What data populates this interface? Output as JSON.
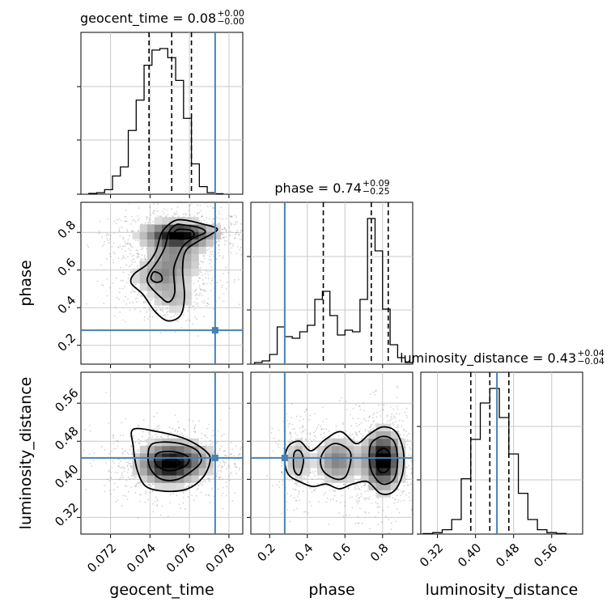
{
  "chart_data": {
    "type": "corner",
    "parameters": [
      "geocent_time",
      "phase",
      "luminosity_distance"
    ],
    "truths": {
      "geocent_time": 0.0773,
      "phase": 0.28,
      "luminosity_distance": 0.445
    },
    "colors": {
      "truth": "#4682b4",
      "contour": "#000000",
      "histogram": "#000000",
      "scatter": "#808080",
      "grid": "#c8c8c8"
    },
    "titles": [
      {
        "param": "geocent_time",
        "text": "geocent_time = 0.08",
        "sup": "+0.00",
        "sub": "−0.00"
      },
      {
        "param": "phase",
        "text": "phase = 0.74",
        "sup": "+0.09",
        "sub": "−0.25"
      },
      {
        "param": "luminosity_distance",
        "text": "luminosity_distance = 0.43",
        "sup": "+0.04",
        "sub": "−0.04"
      }
    ],
    "axis_labels": {
      "x": [
        "geocent_time",
        "phase",
        "luminosity_distance"
      ],
      "y": [
        "phase",
        "luminosity_distance"
      ]
    },
    "ranges": {
      "geocent_time": [
        0.0705,
        0.0787
      ],
      "phase": [
        0.1,
        0.96
      ],
      "luminosity_distance": [
        0.285,
        0.625
      ]
    },
    "ticks": {
      "geocent_time": [
        "0.072",
        "0.074",
        "0.076",
        "0.078"
      ],
      "phase_x": [
        "0.2",
        "0.4",
        "0.6",
        "0.8"
      ],
      "phase_y": [
        "0.2",
        "0.4",
        "0.6",
        "0.8"
      ],
      "luminosity_distance": [
        "0.32",
        "0.40",
        "0.48",
        "0.56"
      ]
    },
    "marginals": {
      "geocent_time": {
        "edges_start": 0.0709,
        "bin_width": 0.0004,
        "counts": [
          0.5,
          1,
          3,
          12,
          18,
          42,
          62,
          85,
          95,
          96,
          90,
          75,
          50,
          20,
          5,
          1,
          0.3
        ],
        "quantiles": [
          0.07395,
          0.0751,
          0.0761
        ]
      },
      "phase": {
        "edges_start": 0.12,
        "bin_width": 0.04,
        "counts": [
          1,
          2,
          6,
          23,
          17,
          16,
          20,
          24,
          40,
          45,
          30,
          18,
          21,
          20,
          40,
          90,
          70,
          34,
          12,
          4,
          1
        ],
        "quantiles": [
          0.485,
          0.74,
          0.83
        ]
      },
      "luminosity_distance": {
        "edges_start": 0.29,
        "bin_width": 0.02,
        "counts": [
          0.3,
          1,
          3,
          10,
          38,
          65,
          90,
          100,
          80,
          55,
          28,
          10,
          3,
          1,
          0.4
        ],
        "quantiles": [
          0.39,
          0.43,
          0.47
        ]
      }
    },
    "contours": {
      "phase_vs_geocent_time": [
        [
          [
            0.0758,
            0.865
          ],
          [
            0.07665,
            0.845
          ],
          [
            0.0774,
            0.82
          ],
          [
            0.0771,
            0.79
          ],
          [
            0.0764,
            0.75
          ],
          [
            0.0758,
            0.7
          ],
          [
            0.07565,
            0.6
          ],
          [
            0.07575,
            0.46
          ],
          [
            0.07555,
            0.36
          ],
          [
            0.0749,
            0.33
          ],
          [
            0.07425,
            0.38
          ],
          [
            0.07365,
            0.47
          ],
          [
            0.07305,
            0.53
          ],
          [
            0.0732,
            0.58
          ],
          [
            0.07385,
            0.63
          ],
          [
            0.0743,
            0.7
          ],
          [
            0.0746,
            0.8
          ],
          [
            0.0752,
            0.86
          ]
        ],
        [
          [
            0.0757,
            0.84
          ],
          [
            0.0765,
            0.825
          ],
          [
            0.0768,
            0.8
          ],
          [
            0.0762,
            0.77
          ],
          [
            0.0757,
            0.73
          ],
          [
            0.0754,
            0.67
          ],
          [
            0.0752,
            0.6
          ],
          [
            0.07525,
            0.48
          ],
          [
            0.07495,
            0.43
          ],
          [
            0.0745,
            0.46
          ],
          [
            0.0739,
            0.53
          ],
          [
            0.07395,
            0.58
          ],
          [
            0.0744,
            0.65
          ],
          [
            0.07475,
            0.72
          ],
          [
            0.07495,
            0.8
          ],
          [
            0.0753,
            0.84
          ]
        ],
        [
          [
            0.0754,
            0.815
          ],
          [
            0.0761,
            0.81
          ],
          [
            0.0762,
            0.78
          ],
          [
            0.0757,
            0.765
          ],
          [
            0.0753,
            0.77
          ],
          [
            0.0752,
            0.79
          ]
        ],
        [
          [
            0.0742,
            0.59
          ],
          [
            0.07455,
            0.575
          ],
          [
            0.0746,
            0.545
          ],
          [
            0.0743,
            0.535
          ],
          [
            0.07405,
            0.555
          ]
        ]
      ],
      "luminosity_distance_vs_geocent_time": [
        [
          [
            0.07315,
            0.505
          ],
          [
            0.0744,
            0.5
          ],
          [
            0.0758,
            0.485
          ],
          [
            0.0768,
            0.46
          ],
          [
            0.07705,
            0.44
          ],
          [
            0.0767,
            0.405
          ],
          [
            0.0759,
            0.38
          ],
          [
            0.0748,
            0.375
          ],
          [
            0.0738,
            0.385
          ],
          [
            0.07335,
            0.42
          ],
          [
            0.07315,
            0.47
          ]
        ],
        [
          [
            0.07415,
            0.475
          ],
          [
            0.0753,
            0.477
          ],
          [
            0.0763,
            0.463
          ],
          [
            0.0766,
            0.44
          ],
          [
            0.0762,
            0.42
          ],
          [
            0.0754,
            0.4
          ],
          [
            0.0746,
            0.4
          ],
          [
            0.07405,
            0.42
          ],
          [
            0.0739,
            0.45
          ]
        ],
        [
          [
            0.0744,
            0.455
          ],
          [
            0.0752,
            0.458
          ],
          [
            0.0759,
            0.448
          ],
          [
            0.0759,
            0.432
          ],
          [
            0.0753,
            0.42
          ],
          [
            0.0747,
            0.42
          ],
          [
            0.07425,
            0.435
          ]
        ],
        [
          [
            0.0748,
            0.44
          ],
          [
            0.0753,
            0.442
          ],
          [
            0.0755,
            0.432
          ],
          [
            0.0751,
            0.428
          ],
          [
            0.07475,
            0.433
          ]
        ]
      ],
      "luminosity_distance_vs_phase": [
        [
          [
            0.3,
            0.47
          ],
          [
            0.36,
            0.48
          ],
          [
            0.42,
            0.46
          ],
          [
            0.5,
            0.485
          ],
          [
            0.58,
            0.5
          ],
          [
            0.66,
            0.475
          ],
          [
            0.73,
            0.495
          ],
          [
            0.8,
            0.51
          ],
          [
            0.87,
            0.5
          ],
          [
            0.91,
            0.46
          ],
          [
            0.905,
            0.41
          ],
          [
            0.86,
            0.375
          ],
          [
            0.79,
            0.37
          ],
          [
            0.72,
            0.395
          ],
          [
            0.64,
            0.39
          ],
          [
            0.57,
            0.38
          ],
          [
            0.5,
            0.39
          ],
          [
            0.43,
            0.385
          ],
          [
            0.36,
            0.395
          ],
          [
            0.3,
            0.41
          ],
          [
            0.28,
            0.44
          ]
        ],
        [
          [
            0.33,
            0.455
          ],
          [
            0.36,
            0.46
          ],
          [
            0.38,
            0.44
          ],
          [
            0.36,
            0.41
          ],
          [
            0.33,
            0.42
          ]
        ],
        [
          [
            0.5,
            0.465
          ],
          [
            0.56,
            0.475
          ],
          [
            0.63,
            0.455
          ],
          [
            0.61,
            0.41
          ],
          [
            0.56,
            0.4
          ],
          [
            0.49,
            0.415
          ],
          [
            0.47,
            0.44
          ]
        ],
        [
          [
            0.74,
            0.475
          ],
          [
            0.8,
            0.49
          ],
          [
            0.86,
            0.48
          ],
          [
            0.88,
            0.44
          ],
          [
            0.86,
            0.4
          ],
          [
            0.8,
            0.39
          ],
          [
            0.75,
            0.41
          ],
          [
            0.73,
            0.44
          ]
        ],
        [
          [
            0.77,
            0.455
          ],
          [
            0.81,
            0.465
          ],
          [
            0.84,
            0.45
          ],
          [
            0.83,
            0.42
          ],
          [
            0.79,
            0.415
          ],
          [
            0.77,
            0.43
          ]
        ]
      ]
    },
    "density_blobs": {
      "phase_vs_geocent_time": [
        [
          0.0755,
          0.79,
          0.0011,
          0.04,
          1.0
        ],
        [
          0.0752,
          0.67,
          0.0009,
          0.08,
          0.45
        ],
        [
          0.0744,
          0.56,
          0.0008,
          0.05,
          0.35
        ],
        [
          0.0752,
          0.45,
          0.0007,
          0.05,
          0.3
        ]
      ],
      "luminosity_distance_vs_geocent_time": [
        [
          0.07525,
          0.44,
          0.0011,
          0.025,
          1.0
        ],
        [
          0.0748,
          0.42,
          0.0008,
          0.02,
          0.5
        ]
      ],
      "luminosity_distance_vs_phase": [
        [
          0.8,
          0.44,
          0.06,
          0.035,
          1.0
        ],
        [
          0.56,
          0.44,
          0.07,
          0.03,
          0.45
        ],
        [
          0.35,
          0.44,
          0.04,
          0.03,
          0.3
        ]
      ]
    }
  }
}
